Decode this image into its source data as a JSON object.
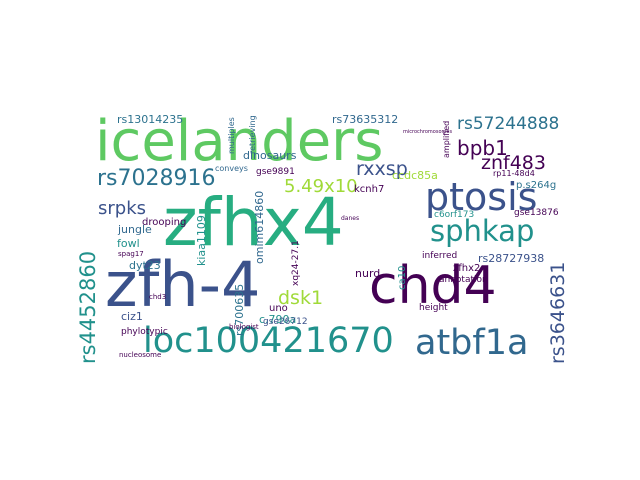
{
  "palette": {
    "background": "#ffffff",
    "colors": [
      "#440154",
      "#3b528b",
      "#21918c",
      "#5ec962",
      "#fde725",
      "#2c728e",
      "#27ad81",
      "#31688e",
      "#a0da39"
    ]
  },
  "words": [
    {
      "text": "zfhx4"
    },
    {
      "text": "zfh-4"
    },
    {
      "text": "chd4"
    },
    {
      "text": "icelanders"
    },
    {
      "text": "loc100421670"
    },
    {
      "text": "atbf1a"
    },
    {
      "text": "ptosis"
    },
    {
      "text": "sphkap"
    },
    {
      "text": "rs7028916"
    },
    {
      "text": "rs57244888"
    },
    {
      "text": "rs4452860"
    },
    {
      "text": "rs3646631"
    },
    {
      "text": "bpb1"
    },
    {
      "text": "znf483"
    },
    {
      "text": "rxxsp"
    },
    {
      "text": "5.49x10"
    },
    {
      "text": "srpks"
    },
    {
      "text": "dsk1"
    },
    {
      "text": "rs13014235"
    },
    {
      "text": "rs73635312"
    },
    {
      "text": "dinosaurs"
    },
    {
      "text": "jungle"
    },
    {
      "text": "drooping"
    },
    {
      "text": "fowl"
    },
    {
      "text": "dyt23"
    },
    {
      "text": "ciz1"
    },
    {
      "text": "kiaa1109"
    },
    {
      "text": "omim614860"
    },
    {
      "text": "rs700635"
    },
    {
      "text": "c.790a"
    },
    {
      "text": "gse9891"
    },
    {
      "text": "kcnh7"
    },
    {
      "text": "ccdc85a"
    },
    {
      "text": "p.s264g"
    },
    {
      "text": "gse13876"
    },
    {
      "text": "c6orf173"
    },
    {
      "text": "rs28727938"
    },
    {
      "text": "zfhx2"
    },
    {
      "text": "nurd"
    },
    {
      "text": "annotation"
    },
    {
      "text": "inferred"
    },
    {
      "text": "uno"
    },
    {
      "text": "gse26712"
    },
    {
      "text": "xq24-27.1"
    },
    {
      "text": "rp11-48d4"
    },
    {
      "text": "conveys"
    },
    {
      "text": "multiples"
    },
    {
      "text": "retrieving"
    },
    {
      "text": "amplified"
    },
    {
      "text": "chd3"
    },
    {
      "text": "spag17"
    },
    {
      "text": "height"
    },
    {
      "text": "phylotypic"
    },
    {
      "text": "ca10"
    },
    {
      "text": "biologist"
    },
    {
      "text": "nucleosome"
    },
    {
      "text": "microchromosomes"
    },
    {
      "text": "danes"
    }
  ]
}
